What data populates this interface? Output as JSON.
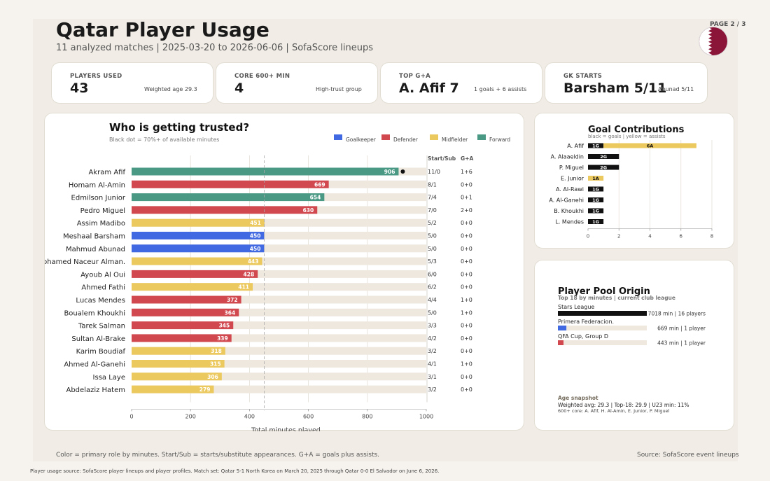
{
  "header": {
    "title": "Qatar Player Usage",
    "subtitle": "11 analyzed matches | 2025-03-20 to 2026-06-06 | SofaScore lineups",
    "page": "PAGE 2 / 3"
  },
  "kpis": [
    {
      "label": "PLAYERS USED",
      "value": "43",
      "note": "Weighted age 29.3"
    },
    {
      "label": "CORE 600+ MIN",
      "value": "4",
      "note": "High-trust group"
    },
    {
      "label": "TOP G+A",
      "value": "A. Afif 7",
      "note": "1 goals + 6 assists"
    },
    {
      "label": "GK STARTS",
      "value": "Barsham 5/11",
      "note": "Abunad 5/11"
    }
  ],
  "colors": {
    "Goalkeeper": "#4169e1",
    "Defender": "#d1484f",
    "Midfielder": "#ecc95f",
    "Forward": "#4a9984",
    "track": "#eee8df",
    "flag_maroon": "#8a1538"
  },
  "chart_data": [
    {
      "type": "bar",
      "title": "Who is getting trusted?",
      "subtitle": "Black dot = 70%+ of available minutes",
      "xlabel": "Total minutes played",
      "xlim": [
        0,
        1000
      ],
      "xticks": [
        0,
        200,
        400,
        600,
        800,
        1000
      ],
      "legend": [
        "Goalkeeper",
        "Defender",
        "Midfielder",
        "Forward"
      ],
      "legend_position": "top-right",
      "reference_line": 450,
      "col_headers": [
        "Start/Sub",
        "G+A"
      ],
      "players": [
        {
          "name": "Akram Afif",
          "role": "Forward",
          "minutes": 906,
          "start_sub": "11/0",
          "ga": "1+6",
          "dot": true
        },
        {
          "name": "Homam Al-Amin",
          "role": "Defender",
          "minutes": 669,
          "start_sub": "8/1",
          "ga": "0+0",
          "dot": false
        },
        {
          "name": "Edmilson Junior",
          "role": "Forward",
          "minutes": 654,
          "start_sub": "7/4",
          "ga": "0+1",
          "dot": false
        },
        {
          "name": "Pedro Miguel",
          "role": "Defender",
          "minutes": 630,
          "start_sub": "7/0",
          "ga": "2+0",
          "dot": false
        },
        {
          "name": "Assim Madibo",
          "role": "Midfielder",
          "minutes": 451,
          "start_sub": "5/2",
          "ga": "0+0",
          "dot": false
        },
        {
          "name": "Meshaal Barsham",
          "role": "Goalkeeper",
          "minutes": 450,
          "start_sub": "5/0",
          "ga": "0+0",
          "dot": false
        },
        {
          "name": "Mahmud Abunad",
          "role": "Goalkeeper",
          "minutes": 450,
          "start_sub": "5/0",
          "ga": "0+0",
          "dot": false
        },
        {
          "name": "Mohamed Naceur Alman.",
          "role": "Midfielder",
          "minutes": 443,
          "start_sub": "5/3",
          "ga": "0+0",
          "dot": false
        },
        {
          "name": "Ayoub Al Oui",
          "role": "Defender",
          "minutes": 428,
          "start_sub": "6/0",
          "ga": "0+0",
          "dot": false
        },
        {
          "name": "Ahmed Fathi",
          "role": "Midfielder",
          "minutes": 411,
          "start_sub": "6/2",
          "ga": "0+0",
          "dot": false
        },
        {
          "name": "Lucas Mendes",
          "role": "Defender",
          "minutes": 372,
          "start_sub": "4/4",
          "ga": "1+0",
          "dot": false
        },
        {
          "name": "Boualem Khoukhi",
          "role": "Defender",
          "minutes": 364,
          "start_sub": "5/0",
          "ga": "1+0",
          "dot": false
        },
        {
          "name": "Tarek Salman",
          "role": "Defender",
          "minutes": 345,
          "start_sub": "3/3",
          "ga": "0+0",
          "dot": false
        },
        {
          "name": "Sultan Al-Brake",
          "role": "Defender",
          "minutes": 339,
          "start_sub": "4/2",
          "ga": "0+0",
          "dot": false
        },
        {
          "name": "Karim Boudiaf",
          "role": "Midfielder",
          "minutes": 318,
          "start_sub": "3/2",
          "ga": "0+0",
          "dot": false
        },
        {
          "name": "Ahmed Al-Ganehi",
          "role": "Midfielder",
          "minutes": 315,
          "start_sub": "4/1",
          "ga": "1+0",
          "dot": false
        },
        {
          "name": "Issa Laye",
          "role": "Midfielder",
          "minutes": 306,
          "start_sub": "3/1",
          "ga": "0+0",
          "dot": false
        },
        {
          "name": "Abdelaziz Hatem",
          "role": "Midfielder",
          "minutes": 279,
          "start_sub": "3/2",
          "ga": "0+0",
          "dot": false
        }
      ]
    },
    {
      "type": "bar",
      "title": "Goal Contributions",
      "subtitle": "black = goals | yellow = assists",
      "xlim": [
        0,
        8
      ],
      "xticks": [
        0,
        2,
        4,
        6,
        8
      ],
      "series": [
        {
          "name": "goals",
          "values": [
            1,
            2,
            2,
            0,
            1,
            1,
            1,
            1
          ]
        },
        {
          "name": "assists",
          "values": [
            6,
            0,
            0,
            1,
            0,
            0,
            0,
            0
          ]
        }
      ],
      "categories": [
        "A. Afif",
        "A. Alaaeldin",
        "P. Miguel",
        "E. Junior",
        "A. Al-Rawi",
        "A. Al-Ganehi",
        "B. Khoukhi",
        "L. Mendes"
      ],
      "goal_labels": [
        "1G",
        "2G",
        "2G",
        "",
        "1G",
        "1G",
        "1G",
        "1G"
      ],
      "assist_labels": [
        "6A",
        "",
        "",
        "1A",
        "",
        "",
        "",
        ""
      ]
    },
    {
      "type": "bar",
      "title": "Player Pool Origin",
      "subtitle": "Top 18 by minutes | current club league",
      "xlim": [
        0,
        7018
      ],
      "categories": [
        "Stars League",
        "Primera Federacion.",
        "QFA Cup, Group D"
      ],
      "values": [
        7018,
        669,
        443
      ],
      "labels": [
        "7018 min | 16 players",
        "669 min | 1 player",
        "443 min | 1 player"
      ],
      "bar_colors": [
        "#111111",
        "#4169e1",
        "#d1484f"
      ]
    }
  ],
  "age_snapshot": {
    "title": "Age snapshot",
    "line1": "Weighted avg: 29.3 | Top-18: 29.9 | U23 min: 11%",
    "line2": "600+ core: A. Afif, H. Al-Amin, E. Junior, P. Miguel"
  },
  "footer": {
    "left": "Color = primary role by minutes. Start/Sub = starts/substitute appearances. G+A = goals plus assists.",
    "right": "Source: SofaScore event lineups",
    "source": "Player usage source: SofaScore player lineups and player profiles. Match set: Qatar 5-1 North Korea on March 20, 2025 through Qatar 0-0 El Salvador on June 6, 2026."
  }
}
